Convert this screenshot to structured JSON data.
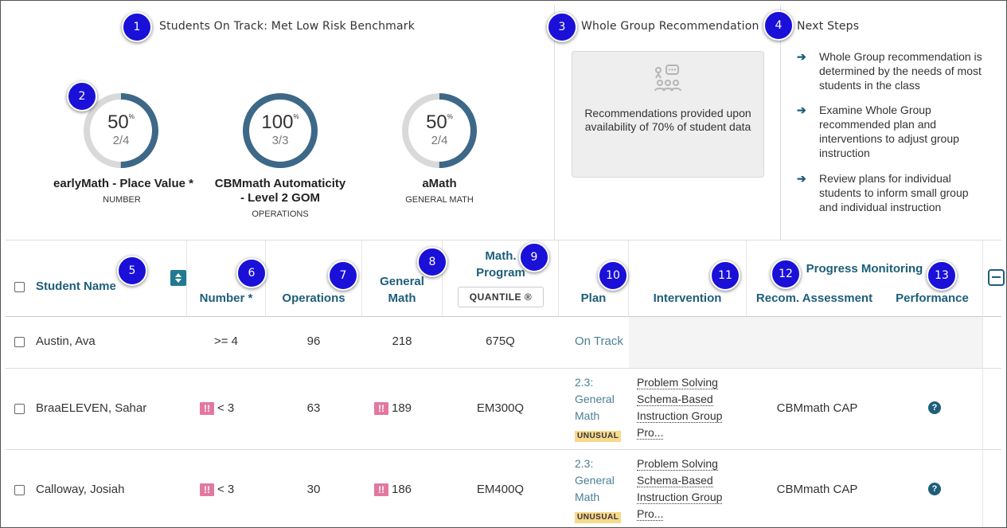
{
  "summary": {
    "title": "Students On Track: Met Low Risk Benchmark",
    "gauges": [
      {
        "pct": "50",
        "pct_unit": "%",
        "fraction": "2/4",
        "name": "earlyMath - Place Value *",
        "sub": "NUMBER",
        "value": 0.5
      },
      {
        "pct": "100",
        "pct_unit": "%",
        "fraction": "3/3",
        "name": "CBMmath Automaticity - Level 2 GOM",
        "sub": "OPERATIONS",
        "value": 1.0
      },
      {
        "pct": "50",
        "pct_unit": "%",
        "fraction": "2/4",
        "name": "aMath",
        "sub": "GENERAL MATH",
        "value": 0.5
      }
    ],
    "ring_color": "#3e6887",
    "ring_track_color": "#d9d9d9"
  },
  "recommendation": {
    "title": "Whole Group Recommendation",
    "text": "Recommendations provided upon availability of 70% of student data",
    "icon": "group-presentation-icon"
  },
  "next_steps": {
    "title": "Next Steps",
    "items": [
      "Whole Group recommendation is determined by the needs of most students in the class",
      "Examine Whole Group recommended plan and interventions to adjust group instruction",
      "Review plans for individual students to inform small group and individual instruction"
    ]
  },
  "callouts": [
    "1",
    "2",
    "3",
    "4",
    "5",
    "6",
    "7",
    "8",
    "9",
    "10",
    "11",
    "12",
    "13"
  ],
  "table": {
    "headers": {
      "student_name": "Student Name",
      "number": "Number *",
      "operations": "Operations",
      "general_math": "General Math",
      "math_program": "Math. Program",
      "quantile_button": "QUANTILE ®",
      "plan": "Plan",
      "intervention": "Intervention",
      "progress_monitoring": "Progress Monitoring",
      "recom_assessment": "Recom. Assessment",
      "performance": "Performance"
    },
    "rows": [
      {
        "name": "Austin, Ava",
        "number": ">= 4",
        "number_flag": false,
        "operations": "96",
        "general_math": "218",
        "general_math_flag": false,
        "quantile": "675Q",
        "plan": "On Track",
        "plan_badge": "",
        "intervention": "",
        "recom_assessment": "",
        "performance_help": false
      },
      {
        "name": "BraaELEVEN, Sahar",
        "number": "< 3",
        "number_flag": true,
        "operations": "63",
        "general_math": "189",
        "general_math_flag": true,
        "quantile": "EM300Q",
        "plan": "2.3: General Math",
        "plan_badge": "UNUSUAL",
        "intervention": "Problem Solving Schema-Based Instruction Group Pro...",
        "recom_assessment": "CBMmath CAP",
        "performance_help": true
      },
      {
        "name": "Calloway, Josiah",
        "number": "< 3",
        "number_flag": true,
        "operations": "30",
        "general_math": "186",
        "general_math_flag": true,
        "quantile": "EM400Q",
        "plan": "2.3: General Math",
        "plan_badge": "UNUSUAL",
        "intervention": "Problem Solving Schema-Based Instruction Group Pro...",
        "recom_assessment": "CBMmath CAP",
        "performance_help": true
      }
    ],
    "flag_label": "!!",
    "help_label": "?",
    "plan_lines": [
      "2.3:",
      "General",
      "Math"
    ],
    "intervention_lines": [
      "Problem Solving",
      "Schema-Based",
      "Instruction Group",
      "Pro..."
    ]
  }
}
